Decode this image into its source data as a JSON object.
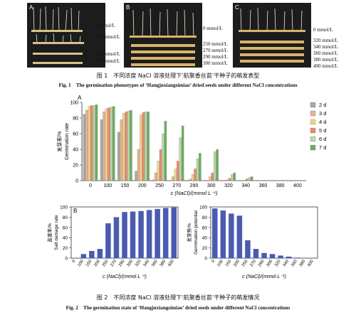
{
  "figure1": {
    "panels": [
      {
        "letter": "A",
        "labels": [
          "0 mmol/L",
          "100 mmol/L",
          "150 mmol/L",
          "200 mmol/L"
        ]
      },
      {
        "letter": "B",
        "labels": [
          "0 mmol/L",
          "250 mmol/L",
          "270 mmol/L",
          "290 mmol/L",
          "300 mmol/L"
        ]
      },
      {
        "letter": "C",
        "labels": [
          "0 mmol/L",
          "320 mmol/L",
          "340 mmol/L",
          "360 mmol/L",
          "380 mmol/L",
          "400 mmol/L"
        ]
      }
    ],
    "caption_cn": "图 1　不同浓度 NaCl 溶液处理下‘航聚香丝苗’干种子的萌发表型",
    "caption_en": "Fig. 1　The germination phenotypes of ‘Hangjuxiangsimiao’ dried seeds under different NaCl concentrations"
  },
  "figure2": {
    "caption_cn": "图 2　不同浓度 NaCl 溶液处理下‘航聚香丝苗’干种子的萌发情况",
    "caption_en": "Fig. 2　The germination state of ‘Hangjuxiangsimiao’ dried seeds under different NaCl concentrations"
  },
  "chart_data": [
    {
      "type": "bar",
      "panel": "A",
      "ylabel_cn": "发芽率/%",
      "ylabel_en": "Germination rate",
      "xlabel": "c (NaCl)/(mmol·L⁻¹)",
      "categories": [
        "0",
        "100",
        "150",
        "200",
        "250",
        "270",
        "290",
        "300",
        "320",
        "340",
        "360",
        "380",
        "400"
      ],
      "ylim": [
        0,
        100
      ],
      "yticks": [
        0,
        20,
        40,
        60,
        80,
        100
      ],
      "legend_position": "right",
      "series": [
        {
          "name": "2 d",
          "color": "#a9a9a9",
          "values": [
            85,
            78,
            62,
            12,
            1,
            0,
            0,
            0,
            0,
            0,
            0,
            0,
            0
          ]
        },
        {
          "name": "3 d",
          "color": "#e8b38f",
          "values": [
            90,
            88,
            78,
            40,
            10,
            5,
            2,
            0,
            0,
            0,
            0,
            0,
            0
          ]
        },
        {
          "name": "4 d",
          "color": "#f1d58a",
          "values": [
            95,
            92,
            86,
            84,
            25,
            15,
            8,
            5,
            1,
            0,
            0,
            0,
            0
          ]
        },
        {
          "name": "5 d",
          "color": "#ef8a6d",
          "values": [
            96,
            93,
            88,
            87,
            40,
            25,
            15,
            10,
            3,
            2,
            0,
            0,
            0
          ]
        },
        {
          "name": "6 d",
          "color": "#b8d9a8",
          "values": [
            96,
            94,
            89,
            88,
            60,
            55,
            28,
            37,
            8,
            4,
            0,
            0,
            0
          ]
        },
        {
          "name": "7 d",
          "color": "#6dae5c",
          "values": [
            97,
            95,
            90,
            88,
            76,
            70,
            35,
            40,
            10,
            5,
            0,
            0,
            0
          ]
        }
      ]
    },
    {
      "type": "bar",
      "panel": "B",
      "ylabel_cn": "盐害率/%",
      "ylabel_en": "Salt damage rate",
      "xlabel": "c (NaCl)/(mmol·L⁻¹)",
      "categories": [
        "0",
        "100",
        "150",
        "200",
        "250",
        "270",
        "290",
        "300",
        "320",
        "340",
        "360",
        "380",
        "400"
      ],
      "ylim": [
        0,
        100
      ],
      "color": "#4a5bb0",
      "values": [
        0,
        8,
        14,
        18,
        68,
        80,
        90,
        91,
        92,
        94,
        96,
        98,
        99
      ]
    },
    {
      "type": "bar",
      "panel": "C",
      "ylabel_cn": "发芽势/%",
      "ylabel_en": "Germination potential",
      "xlabel": "c (NaCl)/(mmol·L⁻¹)",
      "categories": [
        "0",
        "100",
        "150",
        "200",
        "250",
        "270",
        "290",
        "300",
        "320",
        "340",
        "360",
        "380",
        "400"
      ],
      "ylim": [
        0,
        100
      ],
      "color": "#4a5bb0",
      "values": [
        97,
        93,
        87,
        83,
        35,
        18,
        10,
        8,
        5,
        3,
        1,
        0,
        0
      ]
    }
  ]
}
